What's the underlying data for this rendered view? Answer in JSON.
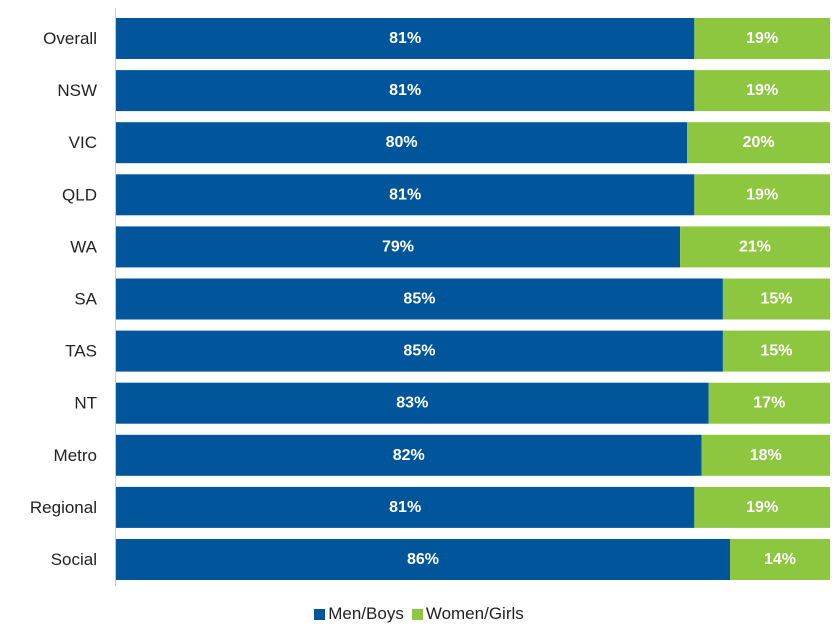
{
  "chart_data": {
    "type": "bar",
    "orientation": "horizontal",
    "stacked": true,
    "categories": [
      "Overall",
      "NSW",
      "VIC",
      "QLD",
      "WA",
      "SA",
      "TAS",
      "NT",
      "Metro",
      "Regional",
      "Social"
    ],
    "series": [
      {
        "name": "Men/Boys",
        "color": "#00559b",
        "values": [
          81,
          81,
          80,
          81,
          79,
          85,
          85,
          83,
          82,
          81,
          86
        ],
        "labels": [
          "81%",
          "81%",
          "80%",
          "81%",
          "79%",
          "85%",
          "85%",
          "83%",
          "82%",
          "81%",
          "86%"
        ]
      },
      {
        "name": "Women/Girls",
        "color": "#8dc63f",
        "values": [
          19,
          19,
          20,
          19,
          21,
          15,
          15,
          17,
          18,
          19,
          14
        ],
        "labels": [
          "19%",
          "19%",
          "20%",
          "19%",
          "21%",
          "15%",
          "15%",
          "17%",
          "18%",
          "19%",
          "14%"
        ]
      }
    ],
    "legend_position": "bottom",
    "grid": false
  }
}
